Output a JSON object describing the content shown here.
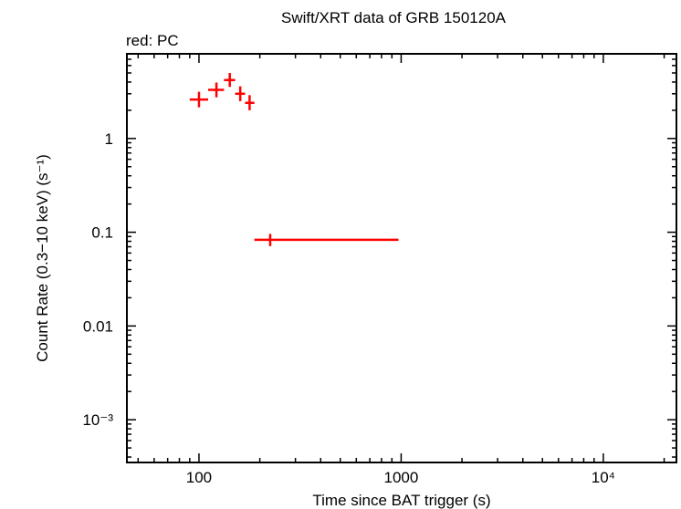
{
  "chart_data": {
    "type": "scatter",
    "title": "Swift/XRT data of GRB 150120A",
    "subtitle": "red: PC",
    "xlabel": "Time since BAT trigger (s)",
    "ylabel": "Count Rate (0.3−10 keV) (s⁻¹)",
    "x_scale": "log",
    "y_scale": "log",
    "xlim": [
      44,
      23000
    ],
    "ylim": [
      0.00035,
      8.0
    ],
    "x_ticks": [
      {
        "value": 100,
        "label": "100"
      },
      {
        "value": 1000,
        "label": "1000"
      },
      {
        "value": 10000,
        "label": "10⁴"
      }
    ],
    "y_ticks": [
      {
        "value": 1,
        "label": "1"
      },
      {
        "value": 0.1,
        "label": "0.1"
      },
      {
        "value": 0.01,
        "label": "0.01"
      },
      {
        "value": 0.001,
        "label": "10⁻³"
      }
    ],
    "grid": false,
    "series": [
      {
        "color": "#ff0000",
        "points": [
          {
            "x": 100,
            "xlo": 90,
            "xhi": 111,
            "y": 2.6,
            "ylo": 2.15,
            "yhi": 3.15
          },
          {
            "x": 122,
            "xlo": 111,
            "xhi": 133,
            "y": 3.3,
            "ylo": 2.75,
            "yhi": 3.95
          },
          {
            "x": 142,
            "xlo": 133,
            "xhi": 151,
            "y": 4.2,
            "ylo": 3.55,
            "yhi": 5.0
          },
          {
            "x": 160,
            "xlo": 151,
            "xhi": 169,
            "y": 3.0,
            "ylo": 2.5,
            "yhi": 3.6
          },
          {
            "x": 178,
            "xlo": 169,
            "xhi": 188,
            "y": 2.4,
            "ylo": 2.0,
            "yhi": 2.9
          },
          {
            "x": 225,
            "xlo": 188,
            "xhi": 970,
            "y": 0.083,
            "ylo": 0.071,
            "yhi": 0.096
          }
        ]
      }
    ]
  }
}
